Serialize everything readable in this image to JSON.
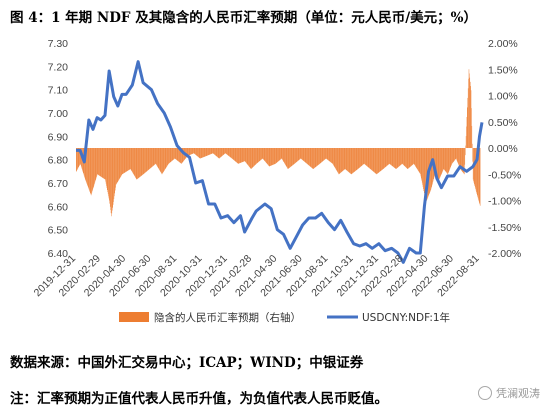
{
  "figure": {
    "title": "图 4：1 年期 NDF 及其隐含的人民币汇率预期（单位：元人民币/美元；%）",
    "source": "数据来源：中国外汇交易中心；ICAP；WIND；中银证券",
    "note": "注：汇率预期为正值代表人民币升值，为负值代表人民币贬值。",
    "watermark": "凭澜观涛",
    "watermark_icon": "wechat-icon"
  },
  "chart_data": {
    "type": "bar+line",
    "x_type": "date",
    "x_ticks": [
      "2019-12-31",
      "2020-02-29",
      "2020-04-30",
      "2020-06-30",
      "2020-08-31",
      "2020-10-31",
      "2020-12-31",
      "2021-02-28",
      "2021-04-30",
      "2021-06-30",
      "2021-08-31",
      "2021-10-31",
      "2021-12-31",
      "2022-02-28",
      "2022-04-30",
      "2022-06-30",
      "2022-08-31"
    ],
    "x_range": [
      "2019-12-31",
      "2022-09-06"
    ],
    "y_left": {
      "ylim": [
        6.4,
        7.3
      ],
      "ticks": [
        "6.40",
        "6.50",
        "6.60",
        "6.70",
        "6.80",
        "6.90",
        "7.00",
        "7.10",
        "7.20",
        "7.30"
      ]
    },
    "y_right": {
      "ylim": [
        -2.0,
        2.0
      ],
      "ticks": [
        "2.00%",
        "1.50%",
        "1.00%",
        "0.50%",
        "0.00%",
        "-0.50%",
        "-1.00%",
        "-1.50%",
        "-2.00%"
      ]
    },
    "grid": false,
    "legend_position": "bottom",
    "series": [
      {
        "name": "隐含的人民币汇率预期（右轴）",
        "type": "bar",
        "axis": "right",
        "color": "#ED7D31",
        "points": [
          [
            "2019-12-31",
            -0.45
          ],
          [
            "2020-01-10",
            -0.3
          ],
          [
            "2020-01-22",
            -0.6
          ],
          [
            "2020-02-05",
            -0.9
          ],
          [
            "2020-02-20",
            -0.5
          ],
          [
            "2020-03-10",
            -0.6
          ],
          [
            "2020-03-20",
            -1.0
          ],
          [
            "2020-03-25",
            -1.3
          ],
          [
            "2020-04-05",
            -0.7
          ],
          [
            "2020-04-20",
            -0.5
          ],
          [
            "2020-05-10",
            -0.4
          ],
          [
            "2020-05-25",
            -0.6
          ],
          [
            "2020-06-10",
            -0.5
          ],
          [
            "2020-06-25",
            -0.4
          ],
          [
            "2020-07-10",
            -0.3
          ],
          [
            "2020-07-25",
            -0.5
          ],
          [
            "2020-08-10",
            -0.3
          ],
          [
            "2020-08-25",
            -0.2
          ],
          [
            "2020-09-10",
            -0.3
          ],
          [
            "2020-09-25",
            -0.15
          ],
          [
            "2020-10-10",
            -0.1
          ],
          [
            "2020-10-25",
            -0.2
          ],
          [
            "2020-11-10",
            -0.15
          ],
          [
            "2020-11-25",
            -0.1
          ],
          [
            "2020-12-10",
            -0.2
          ],
          [
            "2020-12-25",
            -0.1
          ],
          [
            "2021-01-10",
            -0.2
          ],
          [
            "2021-01-25",
            -0.3
          ],
          [
            "2021-02-10",
            -0.25
          ],
          [
            "2021-02-25",
            -0.4
          ],
          [
            "2021-03-10",
            -0.3
          ],
          [
            "2021-03-25",
            -0.2
          ],
          [
            "2021-04-10",
            -0.35
          ],
          [
            "2021-04-25",
            -0.3
          ],
          [
            "2021-05-10",
            -0.2
          ],
          [
            "2021-05-25",
            -0.4
          ],
          [
            "2021-06-10",
            -0.3
          ],
          [
            "2021-06-25",
            -0.2
          ],
          [
            "2021-07-10",
            -0.3
          ],
          [
            "2021-07-25",
            -0.4
          ],
          [
            "2021-08-10",
            -0.3
          ],
          [
            "2021-08-25",
            -0.2
          ],
          [
            "2021-09-10",
            -0.3
          ],
          [
            "2021-09-25",
            -0.5
          ],
          [
            "2021-10-10",
            -0.4
          ],
          [
            "2021-10-25",
            -0.5
          ],
          [
            "2021-11-10",
            -0.4
          ],
          [
            "2021-11-25",
            -0.3
          ],
          [
            "2021-12-10",
            -0.4
          ],
          [
            "2021-12-25",
            -0.5
          ],
          [
            "2022-01-10",
            -0.4
          ],
          [
            "2022-01-25",
            -0.3
          ],
          [
            "2022-02-10",
            -0.4
          ],
          [
            "2022-02-25",
            -0.3
          ],
          [
            "2022-03-10",
            -0.4
          ],
          [
            "2022-03-25",
            -0.3
          ],
          [
            "2022-04-10",
            -0.5
          ],
          [
            "2022-04-20",
            -0.9
          ],
          [
            "2022-04-25",
            -1.0
          ],
          [
            "2022-05-05",
            -0.8
          ],
          [
            "2022-05-15",
            -0.5
          ],
          [
            "2022-05-25",
            -0.6
          ],
          [
            "2022-06-05",
            -0.4
          ],
          [
            "2022-06-15",
            -0.5
          ],
          [
            "2022-06-25",
            -0.3
          ],
          [
            "2022-07-05",
            -0.2
          ],
          [
            "2022-07-15",
            -0.4
          ],
          [
            "2022-07-25",
            -0.5
          ],
          [
            "2022-08-05",
            1.5
          ],
          [
            "2022-08-10",
            1.1
          ],
          [
            "2022-08-15",
            -0.6
          ],
          [
            "2022-08-25",
            -0.9
          ],
          [
            "2022-09-01",
            -1.1
          ]
        ]
      },
      {
        "name": "USDCNY:NDF:1年",
        "type": "line",
        "axis": "left",
        "color": "#4472C4",
        "points": [
          [
            "2019-12-31",
            6.84
          ],
          [
            "2020-01-10",
            6.84
          ],
          [
            "2020-01-20",
            6.79
          ],
          [
            "2020-01-31",
            6.97
          ],
          [
            "2020-02-10",
            6.93
          ],
          [
            "2020-02-20",
            6.98
          ],
          [
            "2020-02-29",
            6.97
          ],
          [
            "2020-03-10",
            6.99
          ],
          [
            "2020-03-20",
            7.18
          ],
          [
            "2020-03-31",
            7.07
          ],
          [
            "2020-04-10",
            7.03
          ],
          [
            "2020-04-20",
            7.08
          ],
          [
            "2020-04-30",
            7.08
          ],
          [
            "2020-05-15",
            7.12
          ],
          [
            "2020-05-29",
            7.22
          ],
          [
            "2020-06-10",
            7.13
          ],
          [
            "2020-06-30",
            7.1
          ],
          [
            "2020-07-15",
            7.04
          ],
          [
            "2020-07-31",
            7.0
          ],
          [
            "2020-08-15",
            6.94
          ],
          [
            "2020-08-31",
            6.86
          ],
          [
            "2020-09-15",
            6.83
          ],
          [
            "2020-09-30",
            6.81
          ],
          [
            "2020-10-15",
            6.7
          ],
          [
            "2020-10-31",
            6.71
          ],
          [
            "2020-11-15",
            6.61
          ],
          [
            "2020-11-30",
            6.61
          ],
          [
            "2020-12-15",
            6.55
          ],
          [
            "2020-12-31",
            6.56
          ],
          [
            "2021-01-15",
            6.53
          ],
          [
            "2021-01-31",
            6.56
          ],
          [
            "2021-02-10",
            6.49
          ],
          [
            "2021-02-28",
            6.55
          ],
          [
            "2021-03-10",
            6.58
          ],
          [
            "2021-03-31",
            6.61
          ],
          [
            "2021-04-15",
            6.59
          ],
          [
            "2021-04-30",
            6.5
          ],
          [
            "2021-05-15",
            6.48
          ],
          [
            "2021-05-31",
            6.42
          ],
          [
            "2021-06-15",
            6.47
          ],
          [
            "2021-06-30",
            6.52
          ],
          [
            "2021-07-15",
            6.55
          ],
          [
            "2021-07-31",
            6.55
          ],
          [
            "2021-08-15",
            6.57
          ],
          [
            "2021-08-31",
            6.53
          ],
          [
            "2021-09-15",
            6.5
          ],
          [
            "2021-09-30",
            6.54
          ],
          [
            "2021-10-15",
            6.49
          ],
          [
            "2021-10-31",
            6.44
          ],
          [
            "2021-11-15",
            6.43
          ],
          [
            "2021-11-30",
            6.44
          ],
          [
            "2021-12-15",
            6.42
          ],
          [
            "2021-12-31",
            6.44
          ],
          [
            "2022-01-15",
            6.41
          ],
          [
            "2022-01-31",
            6.42
          ],
          [
            "2022-02-15",
            6.4
          ],
          [
            "2022-02-28",
            6.36
          ],
          [
            "2022-03-15",
            6.42
          ],
          [
            "2022-03-31",
            6.4
          ],
          [
            "2022-04-10",
            6.4
          ],
          [
            "2022-04-20",
            6.6
          ],
          [
            "2022-04-30",
            6.75
          ],
          [
            "2022-05-10",
            6.8
          ],
          [
            "2022-05-20",
            6.72
          ],
          [
            "2022-05-31",
            6.68
          ],
          [
            "2022-06-15",
            6.73
          ],
          [
            "2022-06-30",
            6.73
          ],
          [
            "2022-07-15",
            6.77
          ],
          [
            "2022-07-31",
            6.75
          ],
          [
            "2022-08-15",
            6.77
          ],
          [
            "2022-08-25",
            6.8
          ],
          [
            "2022-08-31",
            6.9
          ],
          [
            "2022-09-06",
            6.96
          ]
        ]
      }
    ]
  }
}
